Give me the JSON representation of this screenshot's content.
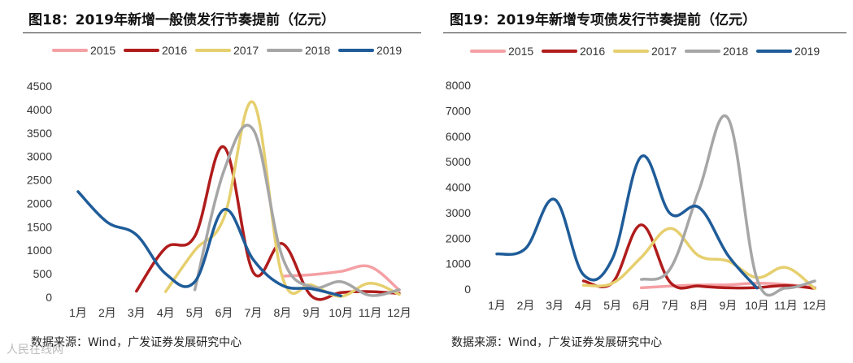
{
  "left_panel": {
    "title": "图18：2019年新增一般债发行节奏提前（亿元）",
    "source": "数据来源：Wind，广发证券发展研究中心"
  },
  "right_panel": {
    "title": "图19：2019年新增专项债发行节奏提前（亿元）",
    "source": "数据来源：Wind，广发证券发展研究中心"
  },
  "watermark": "人民在线网",
  "chart_data": [
    {
      "type": "line",
      "title": "2019年新增一般债发行节奏提前（亿元）",
      "categories": [
        "1月",
        "2月",
        "3月",
        "4月",
        "5月",
        "6月",
        "7月",
        "8月",
        "9月",
        "10月",
        "11月",
        "12月"
      ],
      "ylim": [
        0,
        4500
      ],
      "yticks": [
        0,
        500,
        1000,
        1500,
        2000,
        2500,
        3000,
        3500,
        4000,
        4500
      ],
      "legend_position": "top",
      "series": [
        {
          "name": "2015",
          "color": "#f4a0a4",
          "values": [
            null,
            null,
            null,
            null,
            null,
            null,
            null,
            450,
            480,
            550,
            650,
            150
          ]
        },
        {
          "name": "2016",
          "color": "#b01c1c",
          "values": [
            null,
            null,
            130,
            1050,
            1300,
            3200,
            530,
            1140,
            20,
            100,
            120,
            80
          ]
        },
        {
          "name": "2017",
          "color": "#e6cf6e",
          "values": [
            null,
            null,
            null,
            120,
            1000,
            1700,
            4150,
            420,
            260,
            20,
            300,
            60
          ]
        },
        {
          "name": "2018",
          "color": "#a6a6a6",
          "values": [
            null,
            null,
            null,
            null,
            160,
            2700,
            3570,
            850,
            220,
            330,
            40,
            160
          ]
        },
        {
          "name": "2019",
          "color": "#1f5c99",
          "values": [
            2250,
            1600,
            1330,
            500,
            330,
            1870,
            800,
            250,
            180,
            30,
            null,
            null
          ]
        }
      ]
    },
    {
      "type": "line",
      "title": "2019年新增专项债发行节奏提前（亿元）",
      "categories": [
        "1月",
        "2月",
        "3月",
        "4月",
        "5月",
        "6月",
        "7月",
        "8月",
        "9月",
        "10月",
        "11月",
        "12月"
      ],
      "ylim": [
        0,
        8000
      ],
      "yticks": [
        0,
        1000,
        2000,
        3000,
        4000,
        5000,
        6000,
        7000,
        8000
      ],
      "legend_position": "top",
      "series": [
        {
          "name": "2015",
          "color": "#f4a0a4",
          "values": [
            null,
            null,
            null,
            null,
            null,
            50,
            120,
            160,
            170,
            230,
            180,
            60
          ]
        },
        {
          "name": "2016",
          "color": "#b01c1c",
          "values": [
            null,
            null,
            null,
            320,
            250,
            2520,
            260,
            120,
            50,
            60,
            140,
            30
          ]
        },
        {
          "name": "2017",
          "color": "#e6cf6e",
          "values": [
            null,
            null,
            null,
            150,
            230,
            1250,
            2380,
            1300,
            1100,
            450,
            850,
            20
          ]
        },
        {
          "name": "2018",
          "color": "#a6a6a6",
          "values": [
            null,
            null,
            null,
            null,
            null,
            380,
            800,
            3900,
            6700,
            400,
            40,
            320
          ]
        },
        {
          "name": "2019",
          "color": "#1f5c99",
          "values": [
            1380,
            1600,
            3520,
            560,
            1200,
            5200,
            2960,
            3200,
            1320,
            40,
            null,
            null
          ]
        }
      ]
    }
  ]
}
